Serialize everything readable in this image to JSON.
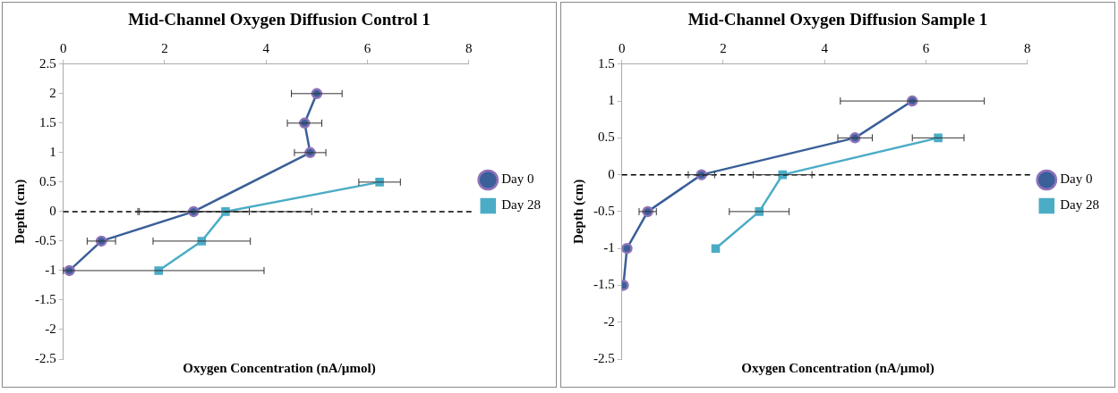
{
  "chart_data": [
    {
      "type": "line",
      "title": "Mid-Channel Oxygen Diffusion Control 1",
      "xlabel": "Oxygen Concentration (nA/µmol)",
      "ylabel": "Depth (cm)",
      "xlim": [
        0,
        8
      ],
      "xticks": [
        0,
        2,
        4,
        6,
        8
      ],
      "ylim": [
        -2.5,
        2.5
      ],
      "yticks": [
        -2.5,
        -2,
        -1.5,
        -1,
        -0.5,
        0,
        0.5,
        1,
        1.5,
        2,
        2.5
      ],
      "grid": false,
      "legend": "right",
      "line_style": "solid",
      "ref_lines": [
        {
          "axis": "y",
          "value": 0,
          "color": "#000000",
          "line_style": "dashed"
        }
      ],
      "series": [
        {
          "name": "Day 0",
          "color": "#3a5f99",
          "marker": "circle",
          "x": [
            5.0,
            4.76,
            4.87,
            2.57,
            0.75,
            0.12
          ],
          "values": [
            2,
            1.5,
            1,
            0,
            -0.5,
            -1
          ],
          "xerrors": [
            0.5,
            0.34,
            0.31,
            1.1,
            0.28,
            [
              0,
              3.96
            ]
          ]
        },
        {
          "name": "Day 28",
          "color": "#4bacc6",
          "marker": "square",
          "x": [
            6.24,
            3.2,
            2.73,
            1.88
          ],
          "values": [
            0.5,
            0,
            -0.5,
            -1
          ],
          "xerrors": [
            0.41,
            1.7,
            0.96,
            null
          ]
        }
      ]
    },
    {
      "type": "line",
      "title": "Mid-Channel Oxygen Diffusion Sample 1",
      "xlabel": "Oxygen Concentration (nA/µmol)",
      "ylabel": "Depth (cm)",
      "xlim": [
        0,
        8
      ],
      "xticks": [
        0,
        2,
        4,
        6,
        8
      ],
      "ylim": [
        -2.5,
        1.5
      ],
      "yticks": [
        -2.5,
        -2,
        -1.5,
        -1,
        -0.5,
        0,
        0.5,
        1,
        1.5
      ],
      "grid": false,
      "legend": "right",
      "line_style": "solid",
      "ref_lines": [
        {
          "axis": "y",
          "value": 0,
          "color": "#000000",
          "line_style": "dashed"
        }
      ],
      "series": [
        {
          "name": "Day 0",
          "color": "#3a5f99",
          "marker": "circle",
          "x": [
            5.73,
            4.6,
            1.57,
            0.51,
            0.1,
            0.03
          ],
          "values": [
            1,
            0.5,
            0,
            -0.5,
            -1,
            -1.5
          ],
          "xerrors": [
            1.42,
            0.34,
            0.26,
            0.17,
            null,
            null
          ]
        },
        {
          "name": "Day 28",
          "color": "#4bacc6",
          "marker": "square",
          "x": [
            6.24,
            3.17,
            2.71,
            1.85
          ],
          "values": [
            0.5,
            0,
            -0.5,
            -1
          ],
          "xerrors": [
            0.51,
            0.58,
            0.59,
            null
          ]
        }
      ]
    }
  ]
}
